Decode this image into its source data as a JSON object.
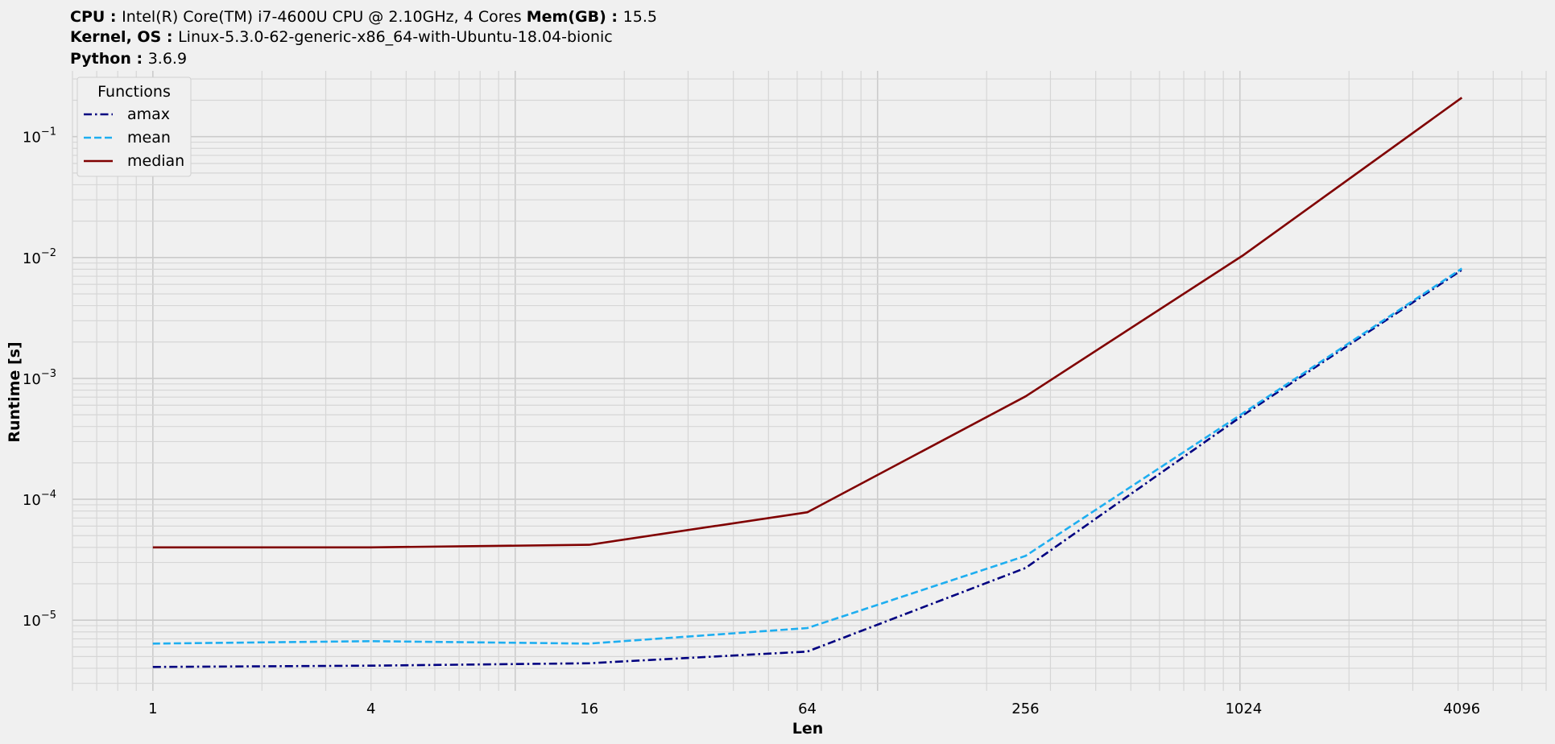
{
  "header": {
    "line1": [
      {
        "key": "CPU",
        "value": "Intel(R) Core(TM) i7-4600U CPU @ 2.10GHz, 4 Cores"
      },
      {
        "key": "Mem(GB)",
        "value": "15.5"
      }
    ],
    "line2": [
      {
        "key": "Kernel, OS",
        "value": "Linux-5.3.0-62-generic-x86_64-with-Ubuntu-18.04-bionic"
      }
    ],
    "line3": [
      {
        "key": "Python",
        "value": "3.6.9"
      }
    ]
  },
  "chart_data": {
    "type": "line",
    "xlabel": "Len",
    "ylabel": "Runtime [s]",
    "xscale": "log2",
    "yscale": "log10",
    "x": [
      1,
      4,
      16,
      64,
      256,
      1024,
      4096
    ],
    "xticks": [
      "1",
      "4",
      "16",
      "64",
      "256",
      "1024",
      "4096"
    ],
    "yticks": [
      {
        "base": "10",
        "exp": "−5",
        "value": 1e-05
      },
      {
        "base": "10",
        "exp": "−4",
        "value": 0.0001
      },
      {
        "base": "10",
        "exp": "−3",
        "value": 0.001
      },
      {
        "base": "10",
        "exp": "−2",
        "value": 0.01
      },
      {
        "base": "10",
        "exp": "−1",
        "value": 0.1
      }
    ],
    "xlim": [
      0.6,
      7000
    ],
    "ylim": [
      2.6e-06,
      0.35
    ],
    "grid": true,
    "legend": {
      "title": "Functions",
      "position": "top-left"
    },
    "series": [
      {
        "name": "amax",
        "color": "#000080",
        "dash": "dashdot",
        "values": [
          4.1e-06,
          4.2e-06,
          4.4e-06,
          5.5e-06,
          2.7e-05,
          0.0005,
          0.0079
        ]
      },
      {
        "name": "mean",
        "color": "#1eaef0",
        "dash": "dashed",
        "values": [
          6.4e-06,
          6.7e-06,
          6.4e-06,
          8.6e-06,
          3.4e-05,
          0.00052,
          0.0081
        ]
      },
      {
        "name": "median",
        "color": "#800000",
        "dash": "solid",
        "values": [
          4e-05,
          4e-05,
          4.2e-05,
          7.8e-05,
          0.00071,
          0.0105,
          0.21
        ]
      }
    ]
  }
}
